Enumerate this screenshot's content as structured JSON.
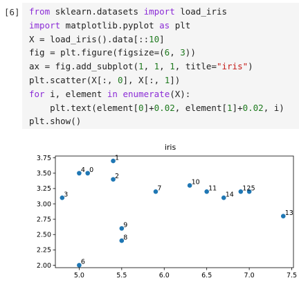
{
  "cell": {
    "prompt": "[6]",
    "lines": [
      [
        {
          "t": "from",
          "c": "kw"
        },
        {
          "t": " sklearn.datasets "
        },
        {
          "t": "import",
          "c": "kw"
        },
        {
          "t": " load_iris"
        }
      ],
      [
        {
          "t": "import",
          "c": "kw"
        },
        {
          "t": " matplotlib.pyplot "
        },
        {
          "t": "as",
          "c": "kw"
        },
        {
          "t": " plt"
        }
      ],
      [
        {
          "t": "X = load_iris().data[::"
        },
        {
          "t": "10",
          "c": "num"
        },
        {
          "t": "]"
        }
      ],
      [
        {
          "t": "fig = plt.figure(figsize=("
        },
        {
          "t": "6",
          "c": "num"
        },
        {
          "t": ", "
        },
        {
          "t": "3",
          "c": "num"
        },
        {
          "t": "))"
        }
      ],
      [
        {
          "t": "ax = fig.add_subplot("
        },
        {
          "t": "1",
          "c": "num"
        },
        {
          "t": ", "
        },
        {
          "t": "1",
          "c": "num"
        },
        {
          "t": ", "
        },
        {
          "t": "1",
          "c": "num"
        },
        {
          "t": ", title="
        },
        {
          "t": "\"iris\"",
          "c": "str"
        },
        {
          "t": ")"
        }
      ],
      [
        {
          "t": "plt.scatter(X[:, "
        },
        {
          "t": "0",
          "c": "num"
        },
        {
          "t": "], X[:, "
        },
        {
          "t": "1",
          "c": "num"
        },
        {
          "t": "])"
        }
      ],
      [
        {
          "t": "for",
          "c": "kw"
        },
        {
          "t": " i, element "
        },
        {
          "t": "in",
          "c": "kw"
        },
        {
          "t": " "
        },
        {
          "t": "enumerate",
          "c": "bi"
        },
        {
          "t": "(X):"
        }
      ],
      [
        {
          "t": "    plt.text(element["
        },
        {
          "t": "0",
          "c": "num"
        },
        {
          "t": "]+"
        },
        {
          "t": "0.02",
          "c": "num"
        },
        {
          "t": ", element["
        },
        {
          "t": "1",
          "c": "num"
        },
        {
          "t": "]+"
        },
        {
          "t": "0.02",
          "c": "num"
        },
        {
          "t": ", i)"
        }
      ],
      [
        {
          "t": "plt.show()"
        }
      ]
    ]
  },
  "chart_data": {
    "type": "scatter",
    "title": "iris",
    "xlabel": "",
    "ylabel": "",
    "xlim": [
      4.72,
      7.52
    ],
    "ylim": [
      1.96,
      3.78
    ],
    "xticks": [
      "5.0",
      "5.5",
      "6.0",
      "6.5",
      "7.0",
      "7.5"
    ],
    "yticks": [
      "2.00",
      "2.25",
      "2.50",
      "2.75",
      "3.00",
      "3.25",
      "3.50",
      "3.75"
    ],
    "grid": false,
    "point_color": "#1f77b4",
    "points": [
      {
        "label": "0",
        "x": 5.1,
        "y": 3.5
      },
      {
        "label": "1",
        "x": 5.4,
        "y": 3.7
      },
      {
        "label": "2",
        "x": 5.4,
        "y": 3.4
      },
      {
        "label": "3",
        "x": 4.8,
        "y": 3.1
      },
      {
        "label": "4",
        "x": 5.0,
        "y": 3.5
      },
      {
        "label": "5",
        "x": 7.0,
        "y": 3.2
      },
      {
        "label": "6",
        "x": 5.0,
        "y": 2.0
      },
      {
        "label": "7",
        "x": 5.9,
        "y": 3.2
      },
      {
        "label": "8",
        "x": 5.5,
        "y": 2.4
      },
      {
        "label": "9",
        "x": 5.5,
        "y": 2.6
      },
      {
        "label": "10",
        "x": 6.3,
        "y": 3.3
      },
      {
        "label": "11",
        "x": 6.5,
        "y": 3.2
      },
      {
        "label": "12",
        "x": 6.9,
        "y": 3.2
      },
      {
        "label": "13",
        "x": 7.4,
        "y": 2.8
      },
      {
        "label": "14",
        "x": 6.7,
        "y": 3.1
      }
    ]
  }
}
